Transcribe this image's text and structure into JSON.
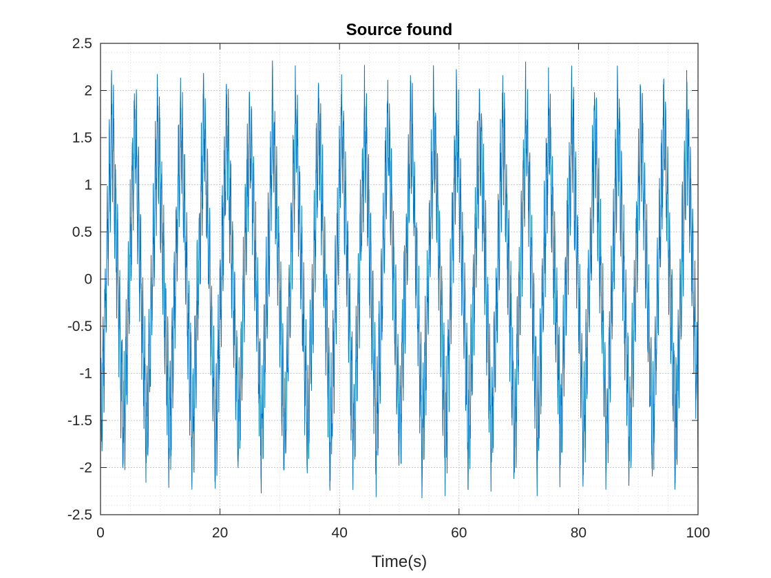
{
  "chart_data": {
    "type": "line",
    "title": "Source found",
    "xlabel": "Time(s)",
    "ylabel": "",
    "xlim": [
      0,
      100
    ],
    "ylim": [
      -2.5,
      2.5
    ],
    "x_ticks": [
      0,
      20,
      40,
      60,
      80,
      100
    ],
    "x_tick_labels": [
      "0",
      "20",
      "40",
      "60",
      "80",
      "100"
    ],
    "y_ticks": [
      -2.5,
      -2,
      -1.5,
      -1,
      -0.5,
      0,
      0.5,
      1,
      1.5,
      2,
      2.5
    ],
    "y_tick_labels": [
      "-2.5",
      "-2",
      "-1.5",
      "-1",
      "-0.5",
      "0",
      "0.5",
      "1",
      "1.5",
      "2",
      "2.5"
    ],
    "grid": true,
    "minor_grid": true,
    "legend": "none",
    "series": [
      {
        "color": "#0072BD",
        "signal": {
          "description_fields": "amplitude/period approximations of the plotted waveform",
          "slow_period_s": 3.85,
          "slow_amplitude": 1.8,
          "fast_period_s": 0.35,
          "fast_amplitude": 0.55,
          "max": 2.35,
          "min": -2.4,
          "x_start": 0,
          "x_end": 100
        }
      }
    ]
  }
}
